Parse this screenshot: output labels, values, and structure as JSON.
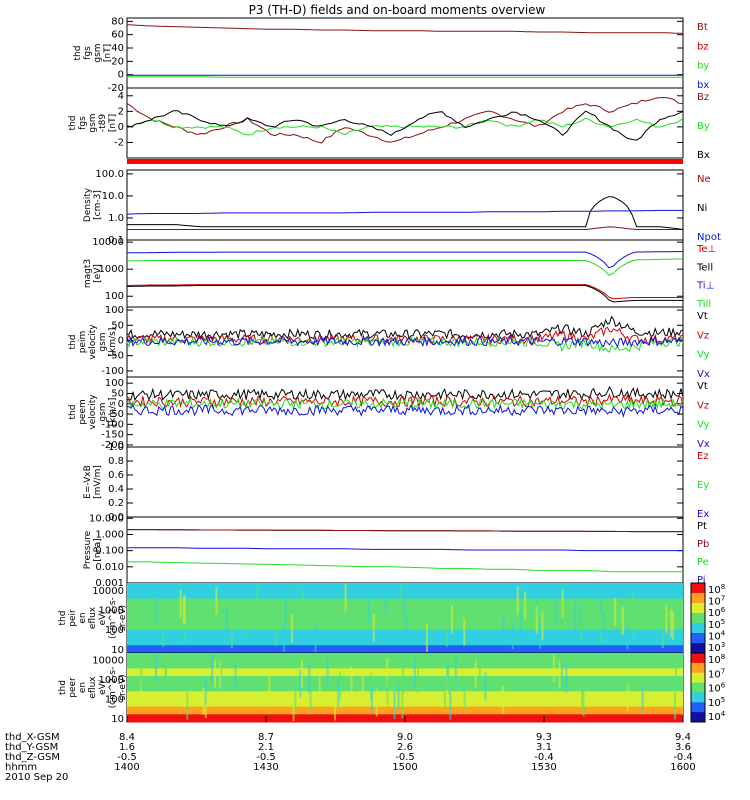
{
  "title": "P3 (TH-D) fields and on-board moments overview",
  "colors": {
    "black": "#000000",
    "red": "#d00000",
    "darkred": "#8b1010",
    "green": "#22dd22",
    "blue": "#1010dd"
  },
  "chart_data": [
    {
      "type": "line",
      "ylabel": [
        "thd",
        "fgs",
        "gsm",
        "[nT]"
      ],
      "yticks": [
        "80",
        "60",
        "40",
        "20",
        "0",
        "-20"
      ],
      "ylim": [
        -20,
        85
      ],
      "series": [
        {
          "name": "Bt",
          "color": "darkred",
          "values": [
            75,
            73,
            72,
            71,
            70,
            69,
            68,
            68,
            67,
            67,
            66,
            66,
            66,
            65,
            65,
            65,
            65,
            64,
            64,
            63,
            63,
            63,
            63,
            62
          ]
        },
        {
          "name": "bz",
          "color": "red",
          "values": []
        },
        {
          "name": "by",
          "color": "green",
          "values": [
            -3,
            -3,
            -3,
            -3,
            -4,
            -4,
            -4,
            -4,
            -4,
            -4,
            -4,
            -4,
            -4,
            -4,
            -4,
            -4,
            -4,
            -4,
            -4,
            -4,
            -4,
            -4,
            -4,
            -4
          ]
        },
        {
          "name": "bx",
          "color": "blue",
          "values": [
            -1,
            -1,
            -1,
            -1,
            -1,
            -1,
            -1,
            -1,
            -1,
            -1,
            -1,
            -1,
            -1,
            -1,
            -1,
            -1,
            -1,
            -1,
            -1,
            -1,
            -1,
            -1,
            -1,
            -1
          ]
        }
      ]
    },
    {
      "type": "line",
      "ylabel": [
        "thd",
        "fgs",
        "gsm",
        "-t89",
        "[nT]"
      ],
      "yticks": [
        "4",
        "2",
        "0",
        "-2"
      ],
      "ylim": [
        -4,
        5
      ],
      "series": [
        {
          "name": "Bz",
          "color": "darkred",
          "values": [
            3,
            1,
            0,
            -1,
            0,
            1,
            -1,
            -1,
            -2,
            0,
            -1,
            -2,
            -1,
            0,
            1,
            2,
            1,
            0,
            2,
            3,
            2,
            3,
            4,
            3
          ]
        },
        {
          "name": "By",
          "color": "green",
          "values": [
            0,
            1,
            0,
            0,
            0,
            -1,
            0,
            0,
            0,
            -1,
            0,
            0,
            0,
            0,
            0,
            1,
            0,
            1,
            0,
            1,
            0,
            1,
            0,
            1
          ]
        },
        {
          "name": "Bx",
          "color": "black",
          "values": [
            0,
            1,
            2,
            1,
            0,
            1,
            0,
            1,
            0,
            1,
            0,
            -1,
            1,
            2,
            0,
            1,
            2,
            1,
            -1,
            2,
            0,
            -2,
            1,
            2
          ]
        }
      ]
    },
    {
      "type": "line",
      "ylabel": [
        "Density",
        "[cm-3]"
      ],
      "log": true,
      "yticks": [
        "100.0",
        "10.0",
        "1.0",
        "0.1"
      ],
      "ylim": [
        0.1,
        150
      ],
      "series": [
        {
          "name": "Ne",
          "color": "darkred",
          "values": [
            0.3,
            0.3,
            0.3,
            0.3,
            0.3,
            0.3,
            0.3,
            0.3,
            0.3,
            0.3,
            0.3,
            0.3,
            0.3,
            0.3,
            0.3,
            0.3,
            0.3,
            0.3,
            0.3,
            0.3,
            0.4,
            0.3,
            0.3,
            0.3
          ]
        },
        {
          "name": "Ni",
          "color": "black",
          "values": [
            0.5,
            0.5,
            0.5,
            0.4,
            0.4,
            0.4,
            0.4,
            0.4,
            0.4,
            0.4,
            0.4,
            0.4,
            0.4,
            0.4,
            0.4,
            0.4,
            0.4,
            0.4,
            0.4,
            0.4,
            10,
            0.4,
            0.4,
            0.3
          ]
        },
        {
          "name": "Npot",
          "color": "blue",
          "values": [
            1.5,
            1.6,
            1.6,
            1.6,
            1.7,
            1.7,
            1.7,
            1.7,
            1.7,
            1.7,
            1.8,
            1.8,
            1.8,
            1.8,
            1.8,
            1.9,
            1.9,
            1.9,
            2.0,
            2.0,
            2.1,
            2.1,
            2.2,
            2.2
          ]
        }
      ]
    },
    {
      "type": "line",
      "ylabel": [
        "magt3",
        "[eV]"
      ],
      "log": true,
      "yticks": [
        "10000",
        "1000",
        "100"
      ],
      "ylim": [
        40,
        12000
      ],
      "series": [
        {
          "name": "Te⊥",
          "color": "red",
          "values": [
            250,
            260,
            260,
            270,
            270,
            270,
            270,
            270,
            270,
            270,
            270,
            270,
            270,
            270,
            270,
            270,
            270,
            270,
            270,
            270,
            80,
            90,
            90,
            90
          ]
        },
        {
          "name": "Tell",
          "color": "black",
          "values": [
            230,
            240,
            240,
            250,
            250,
            250,
            250,
            250,
            250,
            250,
            250,
            250,
            250,
            250,
            250,
            250,
            250,
            250,
            250,
            250,
            60,
            70,
            70,
            70
          ]
        },
        {
          "name": "Ti⊥",
          "color": "blue",
          "values": [
            4000,
            4100,
            4200,
            4200,
            4300,
            4300,
            4300,
            4300,
            4300,
            4300,
            4300,
            4300,
            4300,
            4300,
            4300,
            4300,
            4300,
            4300,
            4300,
            4300,
            900,
            4300,
            4400,
            4500
          ]
        },
        {
          "name": "Till",
          "color": "green",
          "values": [
            2000,
            2100,
            2100,
            2100,
            2100,
            2100,
            2100,
            2100,
            2100,
            2100,
            2100,
            2100,
            2100,
            2100,
            2100,
            2100,
            2100,
            2100,
            2100,
            2100,
            500,
            2200,
            2300,
            2400
          ]
        }
      ]
    },
    {
      "type": "line",
      "ylabel": [
        "thd",
        "peim",
        "velocity",
        "gsm",
        "[km/s]"
      ],
      "yticks": [
        "100",
        "50",
        "0",
        "-50",
        "-100"
      ],
      "ylim": [
        -120,
        110
      ],
      "series": [
        {
          "name": "Vt",
          "color": "black",
          "values": [
            20,
            22,
            20,
            21,
            22,
            20,
            21,
            22,
            20,
            21,
            22,
            20,
            21,
            22,
            20,
            21,
            22,
            20,
            40,
            22,
            70,
            30,
            25,
            30
          ]
        },
        {
          "name": "Vz",
          "color": "red",
          "values": [
            5,
            4,
            5,
            4,
            5,
            4,
            5,
            4,
            5,
            4,
            5,
            4,
            5,
            4,
            5,
            4,
            5,
            4,
            20,
            4,
            40,
            5,
            4,
            5
          ]
        },
        {
          "name": "Vy",
          "color": "green",
          "values": [
            -5,
            -4,
            -5,
            -4,
            -5,
            -4,
            -5,
            -4,
            -5,
            -4,
            -5,
            -4,
            -5,
            -4,
            -5,
            -4,
            -5,
            -4,
            -20,
            -4,
            -30,
            -20,
            -5,
            -4
          ]
        },
        {
          "name": "Vx",
          "color": "blue",
          "values": [
            -2,
            -3,
            -2,
            -3,
            -2,
            -3,
            -2,
            -3,
            -2,
            -3,
            -2,
            -3,
            -2,
            -3,
            -2,
            -3,
            -2,
            -3,
            -2,
            -3,
            -10,
            -3,
            -2,
            -3
          ]
        }
      ]
    },
    {
      "type": "line",
      "ylabel": [
        "thd",
        "peem",
        "velocity",
        "gsm",
        "[km/s]"
      ],
      "yticks": [
        "100",
        "50",
        "0",
        "-50",
        "-100",
        "-150",
        "-200"
      ],
      "ylim": [
        -210,
        130
      ],
      "series": [
        {
          "name": "Vt",
          "color": "black",
          "values": [
            40,
            45,
            42,
            44,
            46,
            45,
            44,
            47,
            45,
            44,
            46,
            45,
            47,
            46,
            45,
            48,
            46,
            45,
            50,
            48,
            60,
            50,
            48,
            50
          ]
        },
        {
          "name": "Vz",
          "color": "red",
          "values": [
            10,
            12,
            10,
            11,
            12,
            10,
            11,
            12,
            10,
            11,
            12,
            10,
            11,
            12,
            10,
            11,
            12,
            10,
            14,
            12,
            20,
            14,
            12,
            14
          ]
        },
        {
          "name": "Vy",
          "color": "green",
          "values": [
            0,
            -2,
            0,
            -1,
            0,
            -2,
            0,
            -1,
            0,
            -2,
            0,
            -1,
            0,
            -2,
            0,
            -1,
            0,
            -2,
            0,
            -1,
            -10,
            0,
            -2,
            0
          ]
        },
        {
          "name": "Vx",
          "color": "blue",
          "values": [
            -30,
            -32,
            -30,
            -31,
            -32,
            -30,
            -31,
            -32,
            -30,
            -31,
            -32,
            -30,
            -31,
            -32,
            -30,
            -31,
            -32,
            -30,
            -33,
            -31,
            -40,
            -33,
            -32,
            -30
          ]
        }
      ]
    },
    {
      "type": "line",
      "ylabel": [
        "E=-VxB",
        "[mV/m]"
      ],
      "yticks": [
        "1.0",
        "0.8",
        "0.6",
        "0.4",
        "0.2",
        "0.0"
      ],
      "ylim": [
        0,
        1
      ],
      "series": [
        {
          "name": "Ez",
          "color": "red",
          "values": []
        },
        {
          "name": "Ey",
          "color": "green",
          "values": []
        },
        {
          "name": "Ex",
          "color": "blue",
          "values": []
        }
      ]
    },
    {
      "type": "line",
      "ylabel": [
        "Pressure",
        "[nPa]"
      ],
      "log": true,
      "yticks": [
        "10.000",
        "1.000",
        "0.100",
        "0.010",
        "0.001"
      ],
      "ylim": [
        0.001,
        12
      ],
      "series": [
        {
          "name": "Pt",
          "color": "black",
          "values": [
            2.0,
            2.0,
            1.95,
            1.9,
            1.9,
            1.85,
            1.85,
            1.8,
            1.8,
            1.75,
            1.75,
            1.7,
            1.7,
            1.7,
            1.65,
            1.65,
            1.6,
            1.6,
            1.6,
            1.55,
            1.55,
            1.5,
            1.5,
            1.5
          ]
        },
        {
          "name": "Pb",
          "color": "darkred",
          "values": [
            2.0,
            2.0,
            1.95,
            1.9,
            1.9,
            1.85,
            1.85,
            1.8,
            1.8,
            1.75,
            1.75,
            1.7,
            1.7,
            1.7,
            1.65,
            1.65,
            1.6,
            1.6,
            1.6,
            1.55,
            1.55,
            1.5,
            1.5,
            1.5
          ]
        },
        {
          "name": "Pe",
          "color": "green",
          "values": [
            0.02,
            0.02,
            0.018,
            0.017,
            0.016,
            0.015,
            0.014,
            0.013,
            0.012,
            0.011,
            0.01,
            0.01,
            0.009,
            0.008,
            0.008,
            0.007,
            0.007,
            0.006,
            0.006,
            0.006,
            0.005,
            0.005,
            0.005,
            0.005
          ]
        },
        {
          "name": "Pi",
          "color": "blue",
          "values": [
            0.15,
            0.15,
            0.15,
            0.14,
            0.14,
            0.14,
            0.13,
            0.13,
            0.13,
            0.13,
            0.12,
            0.12,
            0.12,
            0.12,
            0.11,
            0.11,
            0.11,
            0.11,
            0.11,
            0.1,
            0.1,
            0.1,
            0.1,
            0.1
          ]
        }
      ]
    },
    {
      "type": "heatmap",
      "ylabel": [
        "thd",
        "peir",
        "en",
        "eflux",
        "eV/",
        "(cm^2-s-",
        "sr-eV)"
      ],
      "log": true,
      "yticks": [
        "10000",
        "1000",
        "100",
        "10"
      ],
      "ylim": [
        7,
        25000
      ],
      "colorbar": {
        "ticks": [
          "10^8",
          "10^7",
          "10^6",
          "10^5",
          "10^4",
          "10^3"
        ]
      },
      "rows": [
        "cyan",
        "cyan",
        "green",
        "green",
        "green",
        "green",
        "cyan",
        "cyan",
        "blue"
      ]
    },
    {
      "type": "heatmap",
      "ylabel": [
        "thd",
        "peer",
        "en",
        "eflux",
        "eV/",
        "(cm^2-s-",
        "sr-eV)"
      ],
      "log": true,
      "yticks": [
        "10000",
        "1000",
        "100",
        "10"
      ],
      "ylim": [
        7,
        25000
      ],
      "colorbar": {
        "ticks": [
          "10^8",
          "10^7",
          "10^6",
          "10^5",
          "10^4"
        ]
      },
      "rows": [
        "green",
        "green",
        "yellow",
        "green",
        "green",
        "yellow",
        "yellow",
        "orange",
        "red"
      ]
    }
  ],
  "xaxis": {
    "rows": [
      {
        "label": "thd_X-GSM",
        "values": [
          "8.4",
          "8.7",
          "9.0",
          "9.3",
          "9.4"
        ]
      },
      {
        "label": "thd_Y-GSM",
        "values": [
          "1.6",
          "2.1",
          "2.6",
          "3.1",
          "3.6"
        ]
      },
      {
        "label": "thd_Z-GSM",
        "values": [
          "-0.5",
          "-0.5",
          "-0.5",
          "-0.4",
          "-0.4"
        ]
      },
      {
        "label": "hhmm",
        "values": [
          "1400",
          "1430",
          "1500",
          "1530",
          "1600"
        ]
      }
    ],
    "date": "2010 Sep 20"
  }
}
